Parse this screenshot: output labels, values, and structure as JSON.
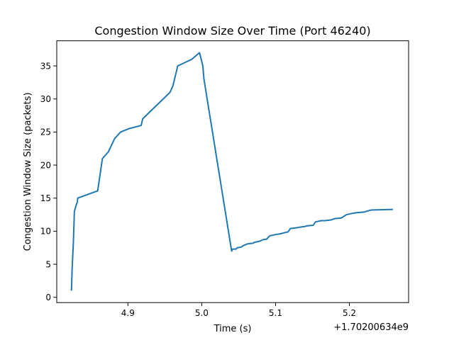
{
  "chart_data": {
    "type": "line",
    "title": "Congestion Window Size Over Time (Port 46240)",
    "xlabel": "Time (s)",
    "ylabel": "Congestion Window Size (packets)",
    "x_offset_label": "+1.70200634e9",
    "xlim": [
      4.8036,
      5.2802
    ],
    "ylim": [
      -0.8,
      38.8
    ],
    "x_ticks": [
      {
        "value": 4.9,
        "label": "4.9"
      },
      {
        "value": 5.0,
        "label": "5.0"
      },
      {
        "value": 5.1,
        "label": "5.1"
      },
      {
        "value": 5.2,
        "label": "5.2"
      }
    ],
    "y_ticks": [
      {
        "value": 0,
        "label": "0"
      },
      {
        "value": 5,
        "label": "5"
      },
      {
        "value": 10,
        "label": "10"
      },
      {
        "value": 15,
        "label": "15"
      },
      {
        "value": 20,
        "label": "20"
      },
      {
        "value": 25,
        "label": "25"
      },
      {
        "value": 30,
        "label": "30"
      },
      {
        "value": 35,
        "label": "35"
      }
    ],
    "grid": false,
    "series": [
      {
        "color": "#1f77b4",
        "x": [
          4.8235,
          4.8245,
          4.826,
          4.8275,
          4.83,
          4.8315,
          4.832,
          4.859,
          4.8655,
          4.8735,
          4.882,
          4.89,
          4.899,
          4.901,
          4.918,
          4.92,
          4.957,
          4.961,
          4.9675,
          4.9865,
          4.997,
          5.0015,
          5.003,
          5.0405,
          5.042,
          5.0465,
          5.048,
          5.0535,
          5.056,
          5.06,
          5.063,
          5.07,
          5.071,
          5.079,
          5.0825,
          5.088,
          5.092,
          5.1005,
          5.106,
          5.117,
          5.12,
          5.127,
          5.1325,
          5.139,
          5.1425,
          5.151,
          5.154,
          5.162,
          5.167,
          5.175,
          5.18,
          5.189,
          5.196,
          5.204,
          5.21,
          5.22,
          5.229,
          5.259
        ],
        "y": [
          1.0,
          4.5,
          8.0,
          13.0,
          14.0,
          14.4,
          15.0,
          16.1,
          21.0,
          22.0,
          24.0,
          25.0,
          25.4,
          25.5,
          26.0,
          27.0,
          31.0,
          32.0,
          35.0,
          36.0,
          37.0,
          35.0,
          33.0,
          7.0,
          7.3,
          7.3,
          7.5,
          7.6,
          7.8,
          8.0,
          8.1,
          8.2,
          8.3,
          8.5,
          8.7,
          8.8,
          9.3,
          9.5,
          9.6,
          9.9,
          10.4,
          10.5,
          10.6,
          10.7,
          10.8,
          10.9,
          11.4,
          11.6,
          11.6,
          11.7,
          11.9,
          12.0,
          12.5,
          12.7,
          12.8,
          12.9,
          13.2,
          13.3
        ]
      }
    ]
  }
}
